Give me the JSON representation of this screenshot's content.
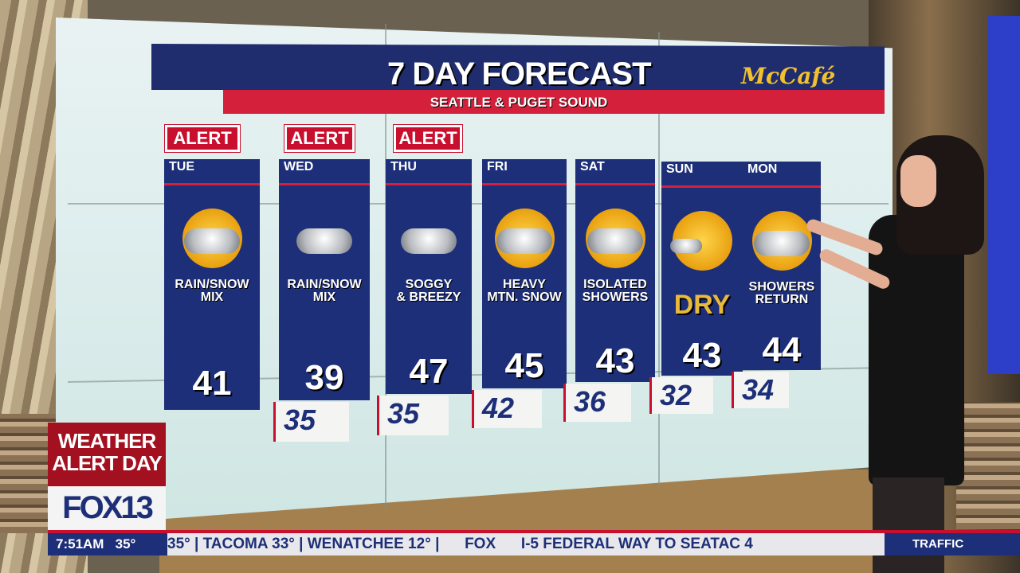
{
  "header": {
    "title": "7 DAY FORECAST",
    "subtitle": "SEATTLE & PUGET SOUND",
    "sponsor": "McCafé"
  },
  "alert_label": "ALERT",
  "days": [
    {
      "name": "TUE",
      "desc1": "RAIN/SNOW",
      "desc2": "MIX",
      "high": "41",
      "low": "",
      "alert": true,
      "icon": "sun-cloud-rain-snow-icon"
    },
    {
      "name": "WED",
      "desc1": "RAIN/SNOW",
      "desc2": "MIX",
      "high": "39",
      "low": "35",
      "alert": true,
      "icon": "cloud-rain-snow-icon"
    },
    {
      "name": "THU",
      "desc1": "SOGGY",
      "desc2": "& BREEZY",
      "high": "47",
      "low": "35",
      "alert": true,
      "icon": "cloud-rain-icon"
    },
    {
      "name": "FRI",
      "desc1": "HEAVY",
      "desc2": "MTN. SNOW",
      "high": "45",
      "low": "42",
      "alert": false,
      "icon": "sun-cloud-rain-icon"
    },
    {
      "name": "SAT",
      "desc1": "ISOLATED",
      "desc2": "SHOWERS",
      "high": "43",
      "low": "36",
      "alert": false,
      "icon": "sun-cloud-showers-icon"
    },
    {
      "name": "SUN",
      "desc1": "DRY",
      "desc2": "",
      "high": "43",
      "low": "32",
      "alert": false,
      "icon": "mostly-sunny-icon"
    },
    {
      "name": "MON",
      "desc1": "SHOWERS",
      "desc2": "RETURN",
      "high": "44",
      "low": "34",
      "alert": false,
      "icon": "sun-cloud-showers-icon"
    }
  ],
  "bug": {
    "alert_line1": "WEATHER",
    "alert_line2": "ALERT DAY",
    "station": "FOX13"
  },
  "ticker": {
    "time": "7:51AM",
    "temp": "35°",
    "crawl": "35° | TACOMA 33° | WENATCHEE 12° |",
    "network": "FOX",
    "traffic_item": "I-5 FEDERAL WAY TO SEATAC 4",
    "section": "TRAFFIC"
  },
  "colors": {
    "navy": "#1d2f78",
    "red": "#c8102e",
    "gold": "#f2c12e"
  }
}
